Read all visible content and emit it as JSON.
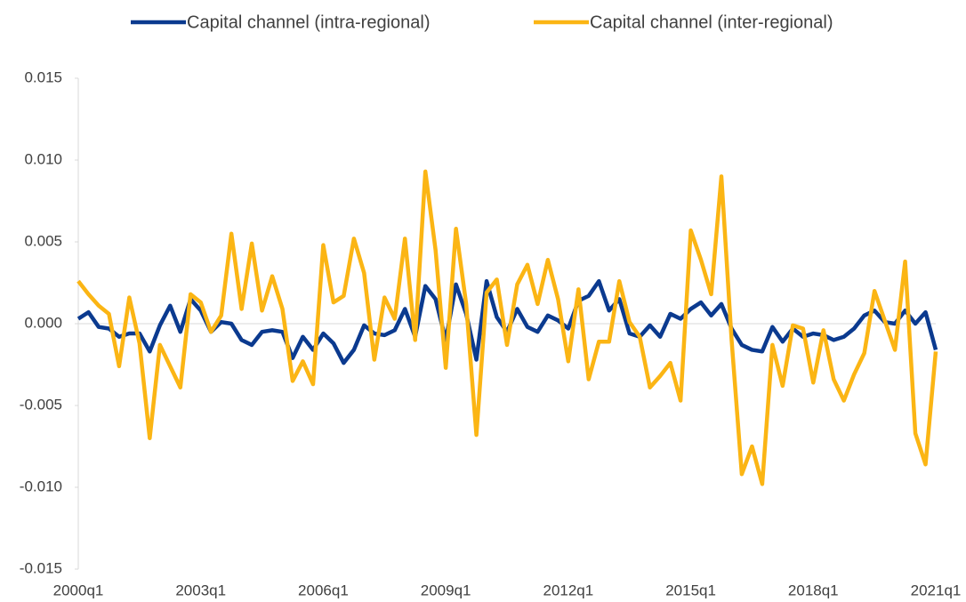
{
  "chart_data": {
    "type": "line",
    "categories": [
      "2000q1",
      null,
      null,
      null,
      null,
      null,
      null,
      null,
      null,
      null,
      null,
      null,
      "2003q1",
      null,
      null,
      null,
      null,
      null,
      null,
      null,
      null,
      null,
      null,
      null,
      "2006q1",
      null,
      null,
      null,
      null,
      null,
      null,
      null,
      null,
      null,
      null,
      null,
      "2009q1",
      null,
      null,
      null,
      null,
      null,
      null,
      null,
      null,
      null,
      null,
      null,
      "2012q1",
      null,
      null,
      null,
      null,
      null,
      null,
      null,
      null,
      null,
      null,
      null,
      "2015q1",
      null,
      null,
      null,
      null,
      null,
      null,
      null,
      null,
      null,
      null,
      null,
      "2018q1",
      null,
      null,
      null,
      null,
      null,
      null,
      null,
      null,
      null,
      null,
      null,
      "2021q1"
    ],
    "series": [
      {
        "name": "Capital channel (intra-regional)",
        "color": "#0b3a8f",
        "values": [
          0.0003,
          0.0007,
          -0.0002,
          -0.0003,
          -0.0008,
          -0.0006,
          -0.0006,
          -0.0017,
          -0.0001,
          0.0011,
          -0.0005,
          0.0015,
          0.0008,
          -0.0005,
          0.0001,
          0.0,
          -0.001,
          -0.0013,
          -0.0005,
          -0.0004,
          -0.0005,
          -0.0021,
          -0.0008,
          -0.0016,
          -0.0006,
          -0.0012,
          -0.0024,
          -0.0016,
          -0.0001,
          -0.0006,
          -0.0007,
          -0.0004,
          0.0009,
          -0.0008,
          0.0023,
          0.0015,
          -0.001,
          0.0024,
          0.0006,
          -0.0022,
          0.0026,
          0.0004,
          -0.0005,
          0.0009,
          -0.0002,
          -0.0005,
          0.0005,
          0.0002,
          -0.0003,
          0.0014,
          0.0017,
          0.0026,
          0.0008,
          0.0015,
          -0.0006,
          -0.0008,
          -0.0001,
          -0.0008,
          0.0006,
          0.0003,
          0.0009,
          0.0013,
          0.0005,
          0.0012,
          -0.0003,
          -0.0013,
          -0.0016,
          -0.0017,
          -0.0002,
          -0.0011,
          -0.0003,
          -0.0008,
          -0.0006,
          -0.0007,
          -0.001,
          -0.0008,
          -0.0003,
          0.0005,
          0.0008,
          0.0001,
          0.0,
          0.0008,
          0.0,
          0.0007,
          -0.0016
        ]
      },
      {
        "name": "Capital channel (inter-regional)",
        "color": "#fbb514",
        "values": [
          0.0026,
          0.0018,
          0.0011,
          0.0006,
          -0.0026,
          0.0016,
          -0.0012,
          -0.007,
          -0.0013,
          -0.0026,
          -0.0039,
          0.0018,
          0.0013,
          -0.0005,
          0.0005,
          0.0055,
          0.0009,
          0.0049,
          0.0008,
          0.0029,
          0.0009,
          -0.0035,
          -0.0023,
          -0.0037,
          0.0048,
          0.0013,
          0.0017,
          0.0052,
          0.0031,
          -0.0022,
          0.0016,
          0.0003,
          0.0052,
          -0.001,
          0.0093,
          0.0045,
          -0.0027,
          0.0058,
          0.0012,
          -0.0068,
          0.0019,
          0.0027,
          -0.0013,
          0.0024,
          0.0036,
          0.0012,
          0.0039,
          0.0015,
          -0.0023,
          0.0021,
          -0.0034,
          -0.0011,
          -0.0011,
          0.0026,
          0.0001,
          -0.0008,
          -0.0039,
          -0.0032,
          -0.0024,
          -0.0047,
          0.0057,
          0.0039,
          0.0018,
          0.009,
          -0.001,
          -0.0092,
          -0.0075,
          -0.0098,
          -0.0013,
          -0.0038,
          -0.0001,
          -0.0003,
          -0.0036,
          -0.0004,
          -0.0034,
          -0.0047,
          -0.0031,
          -0.0018,
          0.002,
          0.0002,
          -0.0016,
          0.0038,
          -0.0067,
          -0.0086,
          -0.0017
        ]
      }
    ],
    "ylim": [
      -0.015,
      0.015
    ],
    "yticks": [
      -0.015,
      {
        "value": -0.01,
        "label": "-0.010"
      },
      -0.005,
      {
        "value": 0,
        "label": "0.000"
      },
      0.005,
      {
        "value": 0.01,
        "label": "0.010"
      },
      0.015
    ],
    "legend": "top"
  }
}
